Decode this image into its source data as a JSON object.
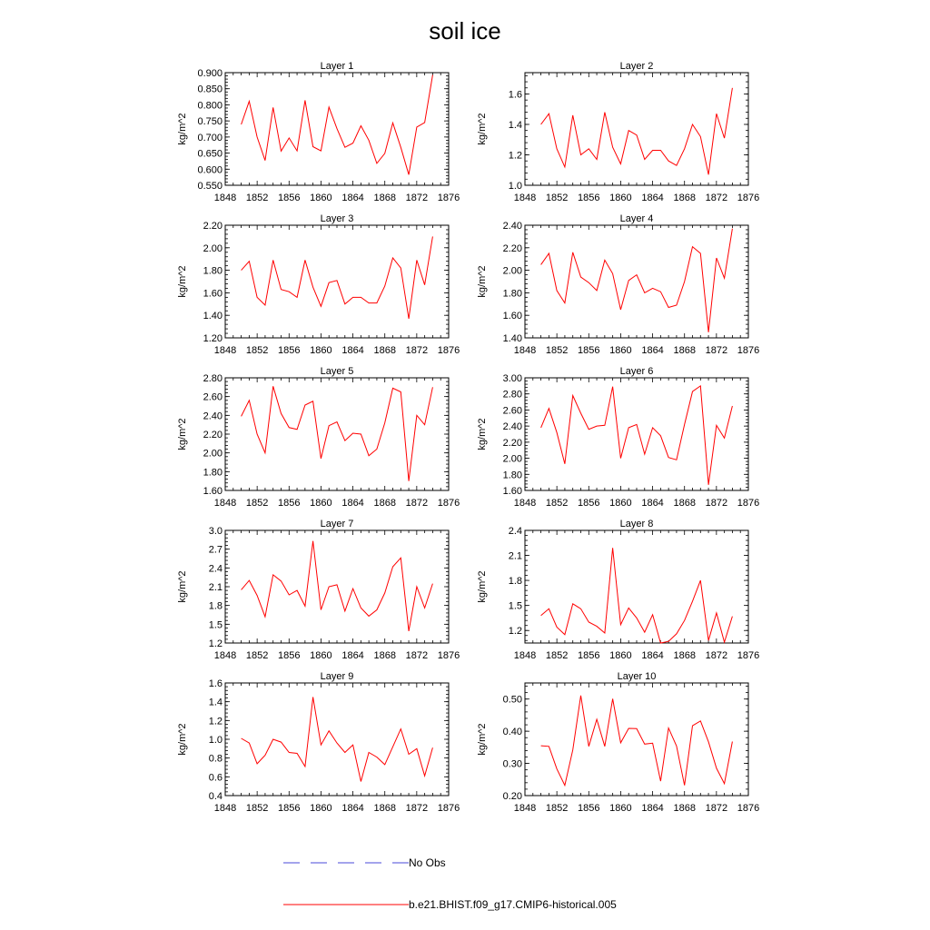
{
  "title": "soil ice",
  "legend": [
    {
      "label": "No Obs",
      "color": "#4a4ad8",
      "style": "dashed"
    },
    {
      "label": "b.e21.BHIST.f09_g17.CMIP6-historical.005",
      "color": "#ff0000",
      "style": "solid"
    }
  ],
  "chart_data": [
    {
      "type": "line",
      "title": "Layer 1",
      "ylabel": "kg/m^2",
      "xlim": [
        1848,
        1876
      ],
      "xticks": [
        1848,
        1852,
        1856,
        1860,
        1864,
        1868,
        1872,
        1876
      ],
      "xtick_labels": [
        "1848",
        "1852",
        "1856",
        "1860",
        "1864",
        "1868",
        "1872",
        "1876"
      ],
      "ylim": [
        0.55,
        0.9
      ],
      "yticks": [
        0.55,
        0.6,
        0.65,
        0.7,
        0.75,
        0.8,
        0.85,
        0.9
      ],
      "ytick_labels": [
        "0.550",
        "0.600",
        "0.650",
        "0.700",
        "0.750",
        "0.800",
        "0.850",
        "0.900"
      ],
      "x": [
        1850,
        1851,
        1852,
        1853,
        1854,
        1855,
        1856,
        1857,
        1858,
        1859,
        1860,
        1861,
        1862,
        1863,
        1864,
        1865,
        1866,
        1867,
        1868,
        1869,
        1870,
        1871,
        1872,
        1873,
        1874
      ],
      "series": [
        {
          "name": "b.e21.BHIST.f09_g17.CMIP6-historical.005",
          "color": "#ff0000",
          "values": [
            0.739,
            0.811,
            0.7,
            0.627,
            0.792,
            0.656,
            0.697,
            0.657,
            0.814,
            0.67,
            0.657,
            0.793,
            0.726,
            0.668,
            0.681,
            0.735,
            0.69,
            0.618,
            0.649,
            0.744,
            0.668,
            0.583,
            0.731,
            0.745,
            0.893
          ]
        }
      ]
    },
    {
      "type": "line",
      "title": "Layer 2",
      "ylabel": "kg/m^2",
      "xlim": [
        1848,
        1876
      ],
      "xticks": [
        1848,
        1852,
        1856,
        1860,
        1864,
        1868,
        1872,
        1876
      ],
      "xtick_labels": [
        "1848",
        "1852",
        "1856",
        "1860",
        "1864",
        "1868",
        "1872",
        "1876"
      ],
      "ylim": [
        1.0,
        1.74
      ],
      "yticks": [
        1.0,
        1.2,
        1.4,
        1.6
      ],
      "ytick_labels": [
        "1.0",
        "1.2",
        "1.4",
        "1.6"
      ],
      "x": [
        1850,
        1851,
        1852,
        1853,
        1854,
        1855,
        1856,
        1857,
        1858,
        1859,
        1860,
        1861,
        1862,
        1863,
        1864,
        1865,
        1866,
        1867,
        1868,
        1869,
        1870,
        1871,
        1872,
        1873,
        1874
      ],
      "series": [
        {
          "name": "b.e21.BHIST.f09_g17.CMIP6-historical.005",
          "color": "#ff0000",
          "values": [
            1.4,
            1.47,
            1.24,
            1.12,
            1.46,
            1.2,
            1.24,
            1.17,
            1.48,
            1.25,
            1.14,
            1.36,
            1.33,
            1.17,
            1.23,
            1.23,
            1.16,
            1.13,
            1.24,
            1.4,
            1.32,
            1.07,
            1.47,
            1.31,
            1.64
          ]
        }
      ]
    },
    {
      "type": "line",
      "title": "Layer 3",
      "ylabel": "kg/m^2",
      "xlim": [
        1848,
        1876
      ],
      "xticks": [
        1848,
        1852,
        1856,
        1860,
        1864,
        1868,
        1872,
        1876
      ],
      "xtick_labels": [
        "1848",
        "1852",
        "1856",
        "1860",
        "1864",
        "1868",
        "1872",
        "1876"
      ],
      "ylim": [
        1.2,
        2.2
      ],
      "yticks": [
        1.2,
        1.4,
        1.6,
        1.8,
        2.0,
        2.2
      ],
      "ytick_labels": [
        "1.20",
        "1.40",
        "1.60",
        "1.80",
        "2.00",
        "2.20"
      ],
      "x": [
        1850,
        1851,
        1852,
        1853,
        1854,
        1855,
        1856,
        1857,
        1858,
        1859,
        1860,
        1861,
        1862,
        1863,
        1864,
        1865,
        1866,
        1867,
        1868,
        1869,
        1870,
        1871,
        1872,
        1873,
        1874
      ],
      "series": [
        {
          "name": "b.e21.BHIST.f09_g17.CMIP6-historical.005",
          "color": "#ff0000",
          "values": [
            1.8,
            1.88,
            1.56,
            1.49,
            1.89,
            1.63,
            1.61,
            1.56,
            1.89,
            1.65,
            1.48,
            1.69,
            1.71,
            1.5,
            1.56,
            1.56,
            1.51,
            1.51,
            1.66,
            1.91,
            1.82,
            1.37,
            1.89,
            1.67,
            2.1
          ]
        }
      ]
    },
    {
      "type": "line",
      "title": "Layer 4",
      "ylabel": "kg/m^2",
      "xlim": [
        1848,
        1876
      ],
      "xticks": [
        1848,
        1852,
        1856,
        1860,
        1864,
        1868,
        1872,
        1876
      ],
      "xtick_labels": [
        "1848",
        "1852",
        "1856",
        "1860",
        "1864",
        "1868",
        "1872",
        "1876"
      ],
      "ylim": [
        1.4,
        2.4
      ],
      "yticks": [
        1.4,
        1.6,
        1.8,
        2.0,
        2.2,
        2.4
      ],
      "ytick_labels": [
        "1.40",
        "1.60",
        "1.80",
        "2.00",
        "2.20",
        "2.40"
      ],
      "x": [
        1850,
        1851,
        1852,
        1853,
        1854,
        1855,
        1856,
        1857,
        1858,
        1859,
        1860,
        1861,
        1862,
        1863,
        1864,
        1865,
        1866,
        1867,
        1868,
        1869,
        1870,
        1871,
        1872,
        1873,
        1874
      ],
      "series": [
        {
          "name": "b.e21.BHIST.f09_g17.CMIP6-historical.005",
          "color": "#ff0000",
          "values": [
            2.05,
            2.15,
            1.82,
            1.71,
            2.16,
            1.94,
            1.89,
            1.82,
            2.09,
            1.97,
            1.65,
            1.91,
            1.96,
            1.8,
            1.84,
            1.81,
            1.67,
            1.69,
            1.9,
            2.21,
            2.15,
            1.45,
            2.11,
            1.93,
            2.37
          ]
        }
      ]
    },
    {
      "type": "line",
      "title": "Layer 5",
      "ylabel": "kg/m^2",
      "xlim": [
        1848,
        1876
      ],
      "xticks": [
        1848,
        1852,
        1856,
        1860,
        1864,
        1868,
        1872,
        1876
      ],
      "xtick_labels": [
        "1848",
        "1852",
        "1856",
        "1860",
        "1864",
        "1868",
        "1872",
        "1876"
      ],
      "ylim": [
        1.6,
        2.8
      ],
      "yticks": [
        1.6,
        1.8,
        2.0,
        2.2,
        2.4,
        2.6,
        2.8
      ],
      "ytick_labels": [
        "1.60",
        "1.80",
        "2.00",
        "2.20",
        "2.40",
        "2.60",
        "2.80"
      ],
      "x": [
        1850,
        1851,
        1852,
        1853,
        1854,
        1855,
        1856,
        1857,
        1858,
        1859,
        1860,
        1861,
        1862,
        1863,
        1864,
        1865,
        1866,
        1867,
        1868,
        1869,
        1870,
        1871,
        1872,
        1873,
        1874
      ],
      "series": [
        {
          "name": "b.e21.BHIST.f09_g17.CMIP6-historical.005",
          "color": "#ff0000",
          "values": [
            2.39,
            2.56,
            2.2,
            2.0,
            2.71,
            2.42,
            2.27,
            2.25,
            2.51,
            2.55,
            1.94,
            2.29,
            2.33,
            2.13,
            2.21,
            2.2,
            1.97,
            2.04,
            2.32,
            2.69,
            2.65,
            1.7,
            2.4,
            2.3,
            2.7
          ]
        }
      ]
    },
    {
      "type": "line",
      "title": "Layer 6",
      "ylabel": "kg/m^2",
      "xlim": [
        1848,
        1876
      ],
      "xticks": [
        1848,
        1852,
        1856,
        1860,
        1864,
        1868,
        1872,
        1876
      ],
      "xtick_labels": [
        "1848",
        "1852",
        "1856",
        "1860",
        "1864",
        "1868",
        "1872",
        "1876"
      ],
      "ylim": [
        1.6,
        3.0
      ],
      "yticks": [
        1.6,
        1.8,
        2.0,
        2.2,
        2.4,
        2.6,
        2.8,
        3.0
      ],
      "ytick_labels": [
        "1.60",
        "1.80",
        "2.00",
        "2.20",
        "2.40",
        "2.60",
        "2.80",
        "3.00"
      ],
      "x": [
        1850,
        1851,
        1852,
        1853,
        1854,
        1855,
        1856,
        1857,
        1858,
        1859,
        1860,
        1861,
        1862,
        1863,
        1864,
        1865,
        1866,
        1867,
        1868,
        1869,
        1870,
        1871,
        1872,
        1873,
        1874
      ],
      "series": [
        {
          "name": "b.e21.BHIST.f09_g17.CMIP6-historical.005",
          "color": "#ff0000",
          "values": [
            2.38,
            2.62,
            2.32,
            1.93,
            2.78,
            2.56,
            2.36,
            2.4,
            2.41,
            2.89,
            2.0,
            2.38,
            2.42,
            2.05,
            2.38,
            2.28,
            2.01,
            1.98,
            2.42,
            2.83,
            2.9,
            1.67,
            2.41,
            2.25,
            2.65
          ]
        }
      ]
    },
    {
      "type": "line",
      "title": "Layer 7",
      "ylabel": "kg/m^2",
      "xlim": [
        1848,
        1876
      ],
      "xticks": [
        1848,
        1852,
        1856,
        1860,
        1864,
        1868,
        1872,
        1876
      ],
      "xtick_labels": [
        "1848",
        "1852",
        "1856",
        "1860",
        "1864",
        "1868",
        "1872",
        "1876"
      ],
      "ylim": [
        1.2,
        3.0
      ],
      "yticks": [
        1.2,
        1.5,
        1.8,
        2.1,
        2.4,
        2.7,
        3.0
      ],
      "ytick_labels": [
        "1.2",
        "1.5",
        "1.8",
        "2.1",
        "2.4",
        "2.7",
        "3.0"
      ],
      "x": [
        1850,
        1851,
        1852,
        1853,
        1854,
        1855,
        1856,
        1857,
        1858,
        1859,
        1860,
        1861,
        1862,
        1863,
        1864,
        1865,
        1866,
        1867,
        1868,
        1869,
        1870,
        1871,
        1872,
        1873,
        1874
      ],
      "series": [
        {
          "name": "b.e21.BHIST.f09_g17.CMIP6-historical.005",
          "color": "#ff0000",
          "values": [
            2.05,
            2.2,
            1.96,
            1.62,
            2.29,
            2.19,
            1.97,
            2.04,
            1.79,
            2.83,
            1.73,
            2.1,
            2.13,
            1.71,
            2.07,
            1.76,
            1.63,
            1.73,
            2.0,
            2.42,
            2.56,
            1.39,
            2.1,
            1.76,
            2.15
          ]
        }
      ]
    },
    {
      "type": "line",
      "title": "Layer 8",
      "ylabel": "kg/m^2",
      "xlim": [
        1848,
        1876
      ],
      "xticks": [
        1848,
        1852,
        1856,
        1860,
        1864,
        1868,
        1872,
        1876
      ],
      "xtick_labels": [
        "1848",
        "1852",
        "1856",
        "1860",
        "1864",
        "1868",
        "1872",
        "1876"
      ],
      "ylim": [
        1.05,
        2.4
      ],
      "yticks": [
        1.2,
        1.5,
        1.8,
        2.1,
        2.4
      ],
      "ytick_labels": [
        "1.2",
        "1.5",
        "1.8",
        "2.1",
        "2.4"
      ],
      "x": [
        1850,
        1851,
        1852,
        1853,
        1854,
        1855,
        1856,
        1857,
        1858,
        1859,
        1860,
        1861,
        1862,
        1863,
        1864,
        1865,
        1866,
        1867,
        1868,
        1869,
        1870,
        1871,
        1872,
        1873,
        1874
      ],
      "series": [
        {
          "name": "b.e21.BHIST.f09_g17.CMIP6-historical.005",
          "color": "#ff0000",
          "values": [
            1.38,
            1.46,
            1.24,
            1.15,
            1.52,
            1.46,
            1.3,
            1.25,
            1.17,
            2.19,
            1.27,
            1.47,
            1.35,
            1.18,
            1.39,
            1.05,
            1.07,
            1.16,
            1.32,
            1.55,
            1.8,
            1.08,
            1.41,
            1.06,
            1.37
          ]
        }
      ]
    },
    {
      "type": "line",
      "title": "Layer 9",
      "ylabel": "kg/m^2",
      "xlim": [
        1848,
        1876
      ],
      "xticks": [
        1848,
        1852,
        1856,
        1860,
        1864,
        1868,
        1872,
        1876
      ],
      "xtick_labels": [
        "1848",
        "1852",
        "1856",
        "1860",
        "1864",
        "1868",
        "1872",
        "1876"
      ],
      "ylim": [
        0.4,
        1.6
      ],
      "yticks": [
        0.4,
        0.6,
        0.8,
        1.0,
        1.2,
        1.4,
        1.6
      ],
      "ytick_labels": [
        "0.4",
        "0.6",
        "0.8",
        "1.0",
        "1.2",
        "1.4",
        "1.6"
      ],
      "x": [
        1850,
        1851,
        1852,
        1853,
        1854,
        1855,
        1856,
        1857,
        1858,
        1859,
        1860,
        1861,
        1862,
        1863,
        1864,
        1865,
        1866,
        1867,
        1868,
        1869,
        1870,
        1871,
        1872,
        1873,
        1874
      ],
      "series": [
        {
          "name": "b.e21.BHIST.f09_g17.CMIP6-historical.005",
          "color": "#ff0000",
          "values": [
            1.01,
            0.96,
            0.74,
            0.83,
            1.0,
            0.97,
            0.86,
            0.85,
            0.71,
            1.45,
            0.94,
            1.09,
            0.96,
            0.86,
            0.94,
            0.55,
            0.86,
            0.81,
            0.73,
            0.92,
            1.11,
            0.84,
            0.9,
            0.61,
            0.91
          ]
        }
      ]
    },
    {
      "type": "line",
      "title": "Layer 10",
      "ylabel": "kg/m^2",
      "xlim": [
        1848,
        1876
      ],
      "xticks": [
        1848,
        1852,
        1856,
        1860,
        1864,
        1868,
        1872,
        1876
      ],
      "xtick_labels": [
        "1848",
        "1852",
        "1856",
        "1860",
        "1864",
        "1868",
        "1872",
        "1876"
      ],
      "ylim": [
        0.2,
        0.55
      ],
      "yticks": [
        0.2,
        0.3,
        0.4,
        0.5
      ],
      "ytick_labels": [
        "0.20",
        "0.30",
        "0.40",
        "0.50"
      ],
      "x": [
        1850,
        1851,
        1852,
        1853,
        1854,
        1855,
        1856,
        1857,
        1858,
        1859,
        1860,
        1861,
        1862,
        1863,
        1864,
        1865,
        1866,
        1867,
        1868,
        1869,
        1870,
        1871,
        1872,
        1873,
        1874
      ],
      "series": [
        {
          "name": "b.e21.BHIST.f09_g17.CMIP6-historical.005",
          "color": "#ff0000",
          "values": [
            0.355,
            0.353,
            0.283,
            0.232,
            0.342,
            0.511,
            0.353,
            0.437,
            0.353,
            0.501,
            0.364,
            0.409,
            0.408,
            0.36,
            0.363,
            0.245,
            0.41,
            0.354,
            0.232,
            0.417,
            0.432,
            0.367,
            0.285,
            0.237,
            0.368
          ]
        }
      ]
    }
  ]
}
